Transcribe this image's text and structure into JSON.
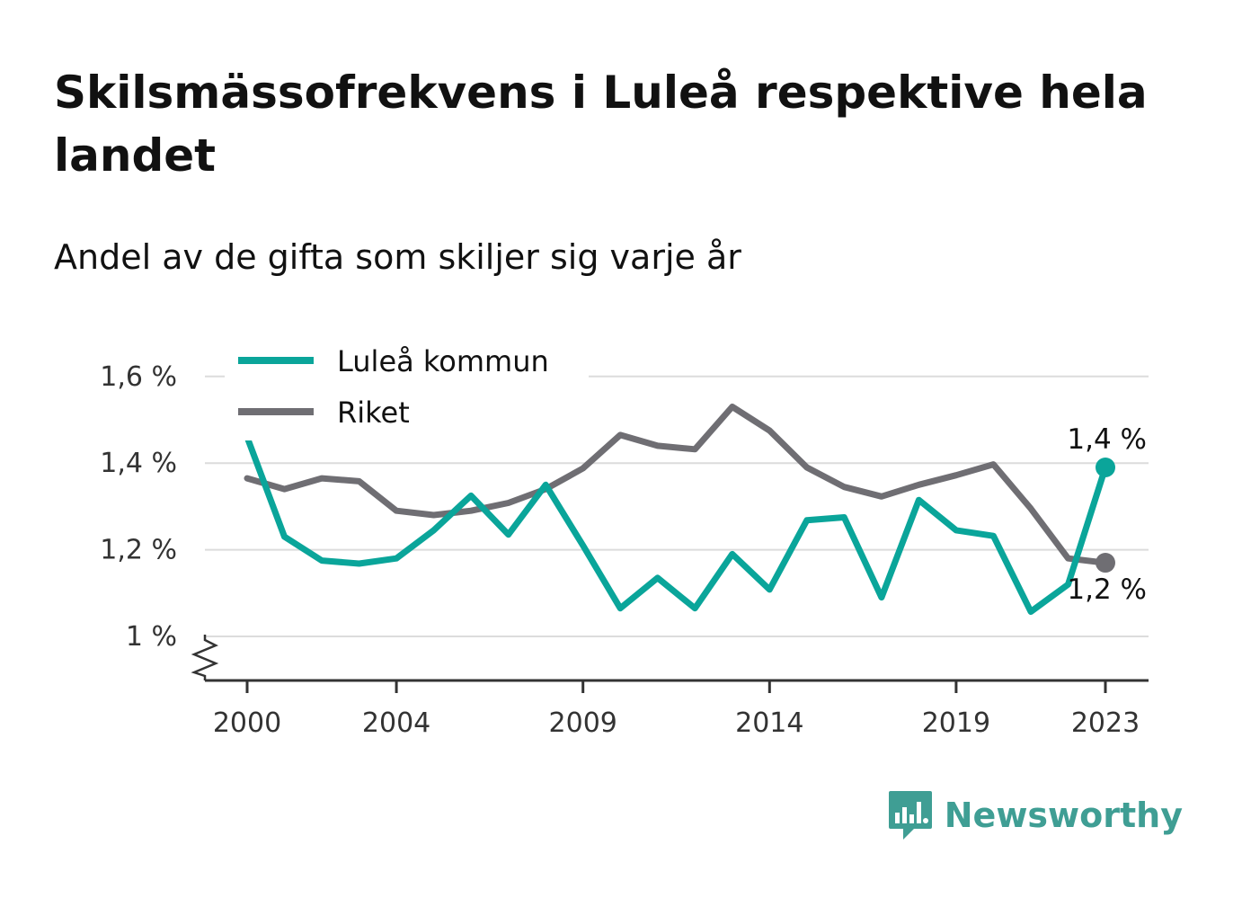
{
  "colors": {
    "lulea": "#0aa59a",
    "riket": "#6f6e73",
    "grid": "#dcdcdc",
    "axis": "#333333",
    "brand": "#3f9e94"
  },
  "brand": {
    "name": "Newsworthy",
    "icon": "bar-chart-speech-bubble-icon"
  },
  "chart_data": {
    "type": "line",
    "title": "Skilsmässofrekvens i Luleå respektive hela landet",
    "subtitle": "Andel av de gifta som skiljer sig varje år",
    "x": [
      2000,
      2001,
      2002,
      2003,
      2004,
      2005,
      2006,
      2007,
      2008,
      2009,
      2010,
      2011,
      2012,
      2013,
      2014,
      2015,
      2016,
      2017,
      2018,
      2019,
      2020,
      2021,
      2022,
      2023
    ],
    "x_ticks": [
      2000,
      2004,
      2009,
      2014,
      2019,
      2023
    ],
    "y_ticks": [
      {
        "value": 1.0,
        "label": "1 %"
      },
      {
        "value": 1.2,
        "label": "1,2 %"
      },
      {
        "value": 1.4,
        "label": "1,4 %"
      },
      {
        "value": 1.6,
        "label": "1,6 %"
      }
    ],
    "ylim": [
      0.9,
      1.6
    ],
    "y_axis_break": true,
    "grid": true,
    "legend": {
      "placement": "top-left"
    },
    "series": [
      {
        "name": "Luleå kommun",
        "color": "#0aa59a",
        "values": [
          1.46,
          1.23,
          1.175,
          1.168,
          1.18,
          1.245,
          1.325,
          1.235,
          1.35,
          1.21,
          1.065,
          1.135,
          1.065,
          1.19,
          1.108,
          1.268,
          1.275,
          1.09,
          1.315,
          1.245,
          1.232,
          1.057,
          1.12,
          1.39
        ],
        "end_label": "1,4 %"
      },
      {
        "name": "Riket",
        "color": "#6f6e73",
        "values": [
          1.365,
          1.34,
          1.365,
          1.358,
          1.29,
          1.28,
          1.29,
          1.308,
          1.34,
          1.388,
          1.465,
          1.44,
          1.432,
          1.53,
          1.475,
          1.39,
          1.345,
          1.323,
          1.35,
          1.372,
          1.397,
          1.295,
          1.18,
          1.17
        ],
        "end_label": "1,2 %"
      }
    ]
  }
}
